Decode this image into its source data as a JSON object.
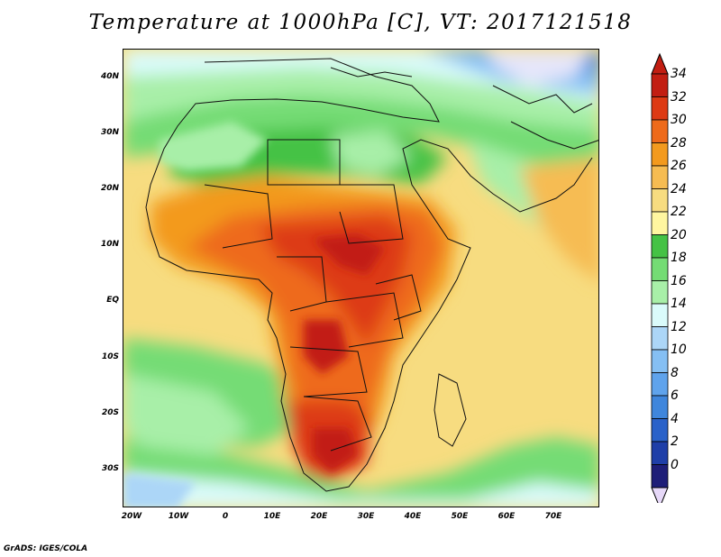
{
  "title": "Temperature at 1000hPa [C], VT: 2017121518",
  "variable": "Temperature",
  "pressure_level": "1000hPa",
  "units": "C",
  "valid_time": "2017121518",
  "lat_labels": [
    "40N",
    "30N",
    "20N",
    "10N",
    "EQ",
    "10S",
    "20S",
    "30S"
  ],
  "lon_labels": [
    "20W",
    "10W",
    "0",
    "10E",
    "20E",
    "30E",
    "40E",
    "50E",
    "60E",
    "70E"
  ],
  "colorbar": {
    "labels": [
      "0",
      "2",
      "4",
      "6",
      "8",
      "10",
      "12",
      "14",
      "16",
      "18",
      "20",
      "22",
      "24",
      "26",
      "28",
      "30",
      "32",
      "34"
    ],
    "colors": [
      "#1e1e78",
      "#1f3fa8",
      "#2a62c9",
      "#3f86dc",
      "#5fa3ec",
      "#85bff3",
      "#acd6f7",
      "#dafbfb",
      "#a8efa8",
      "#74dc74",
      "#45c245",
      "#fff6a0",
      "#f7dc80",
      "#f6bc52",
      "#f39a1e",
      "#ee6a1a",
      "#dd3a14",
      "#c21e12"
    ],
    "top_arrow_color": "#c21e12",
    "bottom_arrow_color": "#e6d8f8"
  },
  "credit": "GrADS: IGES/COLA"
}
